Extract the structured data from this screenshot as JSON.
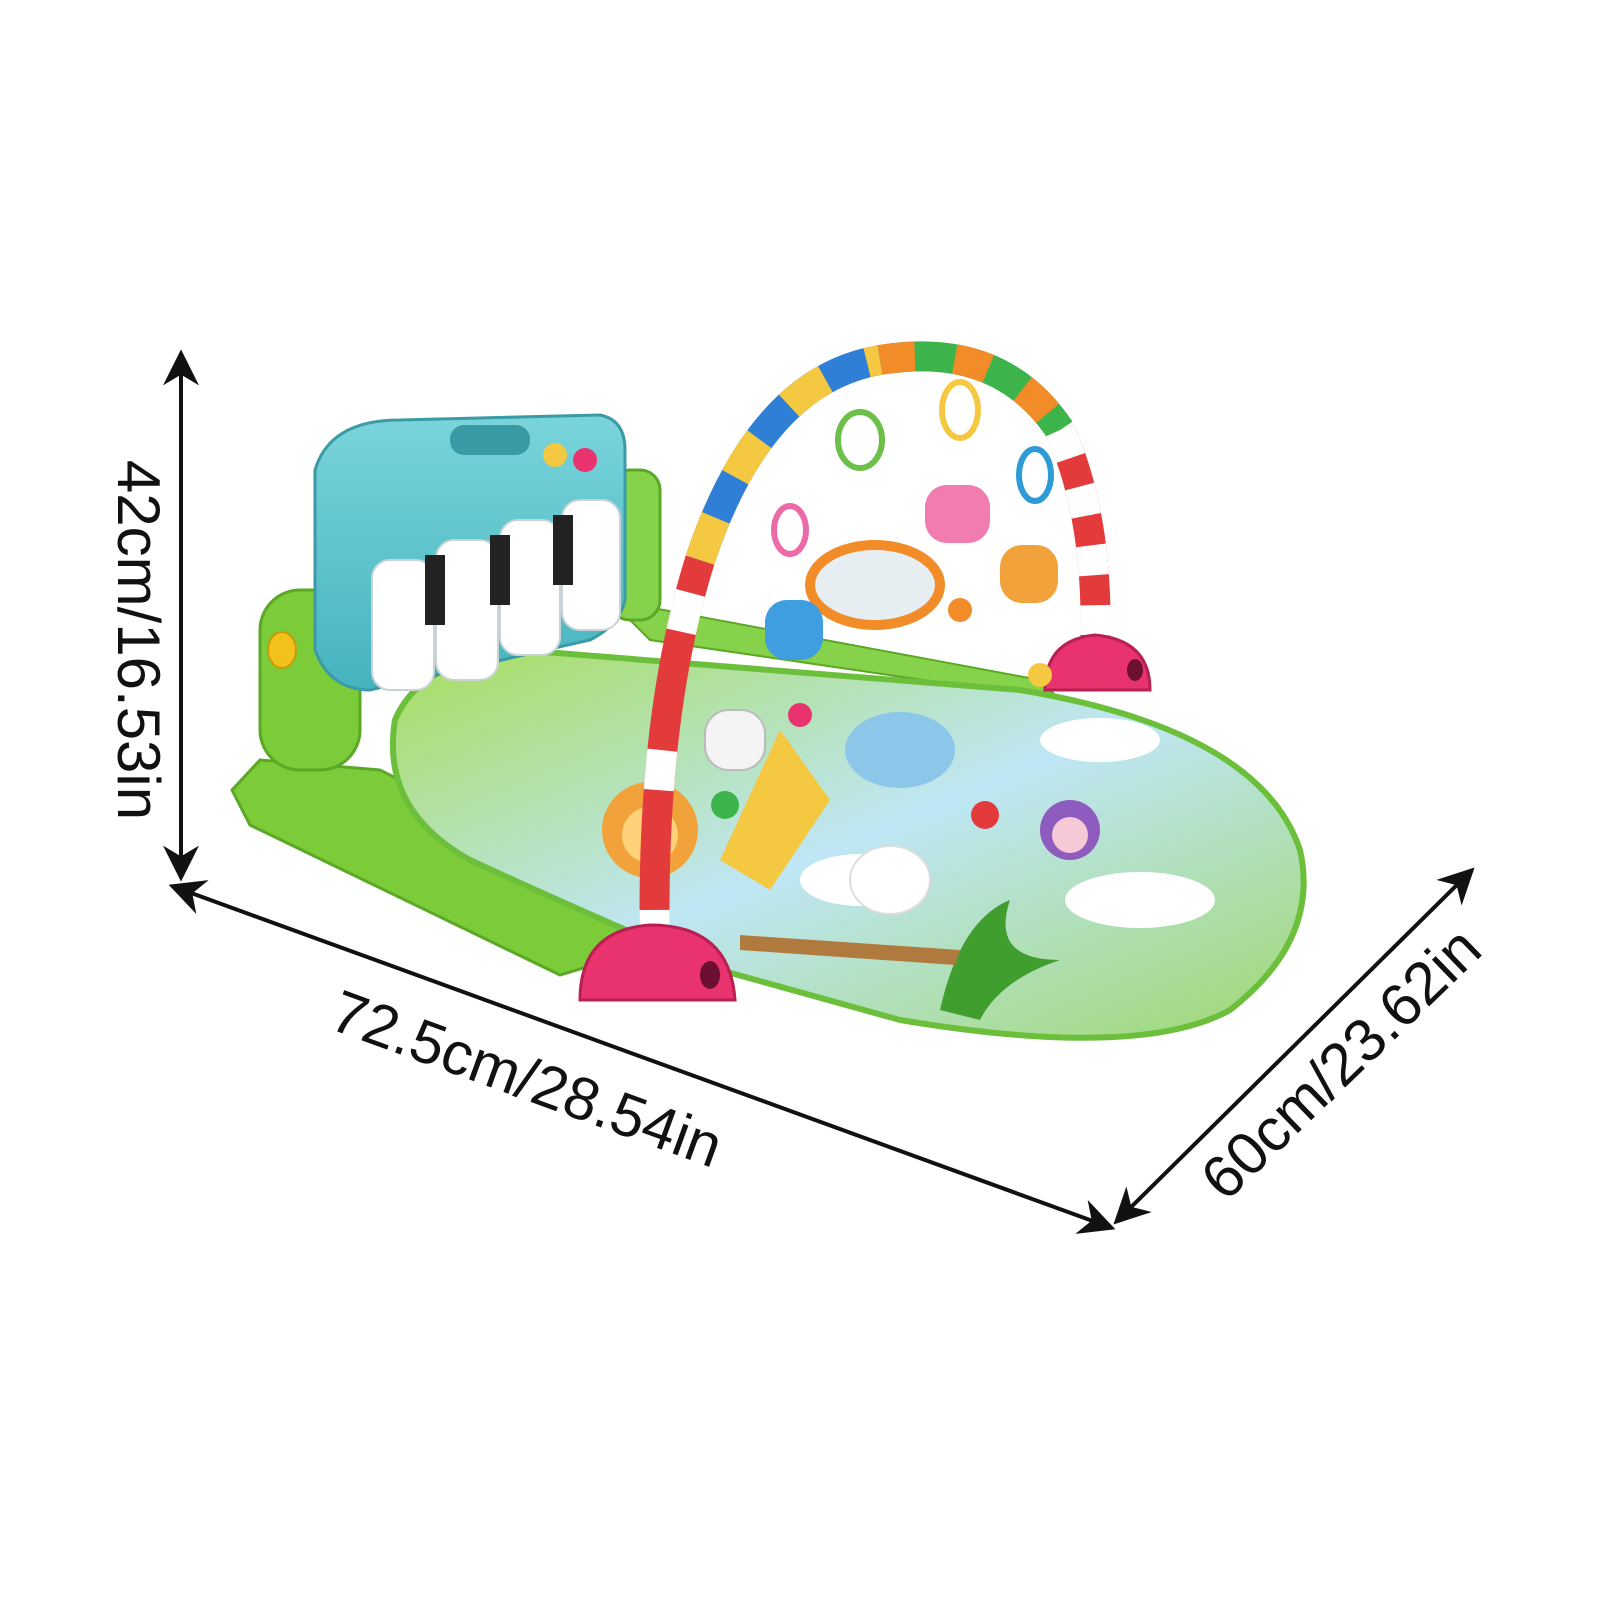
{
  "dimensions": {
    "height_label": "42cm/16.53in",
    "length_label": "72.5cm/28.54in",
    "width_label": "60cm/23.62in"
  },
  "colors": {
    "background": "#ffffff",
    "arrow": "#111111",
    "mat_green": "#8fd14f",
    "mat_blue": "#bfe6f5",
    "frame_green": "#7ccc3a",
    "piano_teal": "#5cc5cf",
    "base_pink": "#e8336f"
  },
  "icons": [
    "double-arrow-icon"
  ]
}
